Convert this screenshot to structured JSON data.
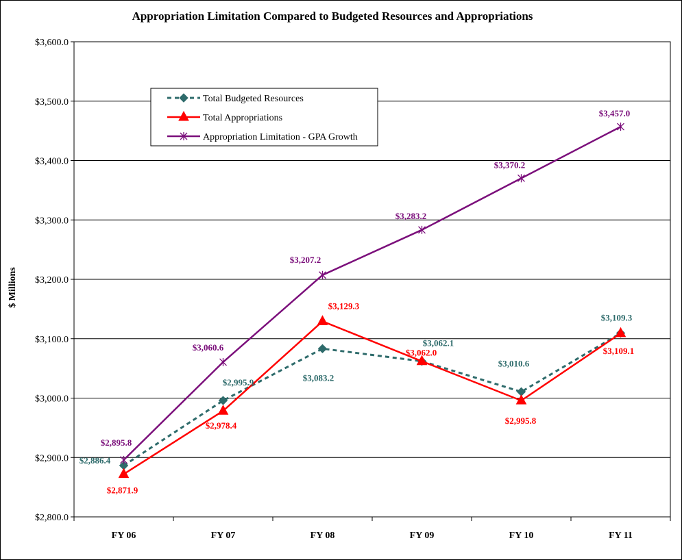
{
  "chart_data": {
    "type": "line",
    "title": "Appropriation Limitation Compared to Budgeted Resources and Appropriations",
    "ylabel": "$ Millions",
    "xlabel": "",
    "categories": [
      "FY 06",
      "FY 07",
      "FY 08",
      "FY 09",
      "FY 10",
      "FY 11"
    ],
    "ylim": [
      2800,
      3600
    ],
    "ytick_values": [
      2800,
      2900,
      3000,
      3100,
      3200,
      3300,
      3400,
      3500,
      3600
    ],
    "ytick_labels": [
      "$2,800.0",
      "$2,900.0",
      "$3,000.0",
      "$3,100.0",
      "$3,200.0",
      "$3,300.0",
      "$3,400.0",
      "$3,500.0",
      "$3,600.0"
    ],
    "grid": true,
    "legend_position": "upper-left",
    "series": [
      {
        "name": "Total Budgeted Resources",
        "color": "#2E6B6B",
        "line_style": "dashed",
        "marker": "diamond",
        "values": [
          2886.4,
          2995.9,
          3083.2,
          3062.1,
          3010.6,
          3109.3
        ],
        "labels": [
          "$2,886.4",
          "$2,995.9",
          "$3,083.2",
          "$3,062.1",
          "$3,010.6",
          "$3,109.3"
        ]
      },
      {
        "name": "Total Appropriations",
        "color": "#FF0000",
        "line_style": "solid",
        "marker": "triangle",
        "values": [
          2871.9,
          2978.4,
          3129.3,
          3062.0,
          2995.8,
          3109.1
        ],
        "labels": [
          "$2,871.9",
          "$2,978.4",
          "$3,129.3",
          "$3,062.0",
          "$2,995.8",
          "$3,109.1"
        ]
      },
      {
        "name": "Appropriation Limitation - GPA Growth",
        "color": "#7B0F7B",
        "line_style": "solid",
        "marker": "star",
        "values": [
          2895.8,
          3060.6,
          3207.2,
          3283.2,
          3370.2,
          3457.0
        ],
        "labels": [
          "$2,895.8",
          "$3,060.6",
          "$3,207.2",
          "$3,283.2",
          "$3,370.2",
          "$3,457.0"
        ]
      }
    ]
  }
}
